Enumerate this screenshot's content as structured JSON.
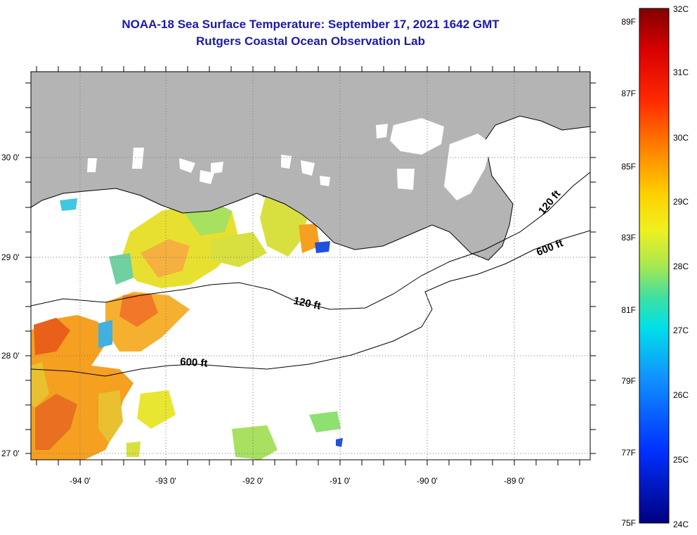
{
  "header": {
    "title": "NOAA-18 Sea Surface Temperature:  September 17, 2021 1642 GMT",
    "subtitle": "Rutgers Coastal Ocean Observation Lab"
  },
  "axes": {
    "lon_labels": [
      "-94 0'",
      "-93 0'",
      "-92 0'",
      "-91 0'",
      "-90 0'",
      "-89 0'"
    ],
    "lat_labels": [
      "30 0'",
      "29 0'",
      "28 0'",
      "27 0'"
    ]
  },
  "contours": {
    "c120_label": "120 ft",
    "c600_label": "600 ft"
  },
  "colorbar": {
    "fahrenheit": [
      "89F",
      "87F",
      "85F",
      "83F",
      "81F",
      "79F",
      "77F",
      "75F"
    ],
    "celsius": [
      "32C",
      "31C",
      "30C",
      "29C",
      "28C",
      "27C",
      "26C",
      "25C",
      "24C"
    ]
  },
  "colors": {
    "land": "#b4b4b4",
    "title": "#1a1aa8",
    "warm": "#f5a020",
    "hot": "#e8601a",
    "yellow": "#e8e630",
    "green": "#8ee070",
    "cyan": "#40c8e0",
    "blue": "#2050e0"
  }
}
